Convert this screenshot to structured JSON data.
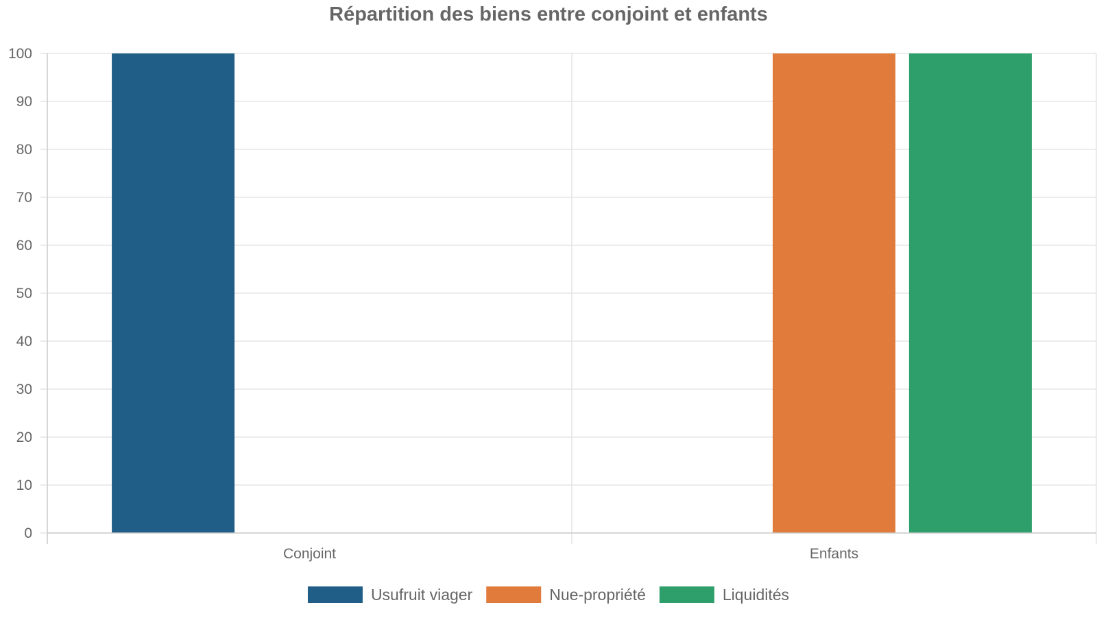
{
  "chart_data": {
    "type": "bar",
    "title": "Répartition des biens entre conjoint et enfants",
    "categories": [
      "Conjoint",
      "Enfants"
    ],
    "series": [
      {
        "name": "Usufruit viager",
        "color": "#215e87",
        "values": [
          100,
          0
        ]
      },
      {
        "name": "Nue-propriété",
        "color": "#e07b3c",
        "values": [
          0,
          100
        ]
      },
      {
        "name": "Liquidités",
        "color": "#2e9e6b",
        "values": [
          0,
          100
        ]
      }
    ],
    "ylim": [
      0,
      100
    ],
    "yticks": [
      0,
      10,
      20,
      30,
      40,
      50,
      60,
      70,
      80,
      90,
      100
    ],
    "grid": true,
    "legend_position": "bottom"
  }
}
